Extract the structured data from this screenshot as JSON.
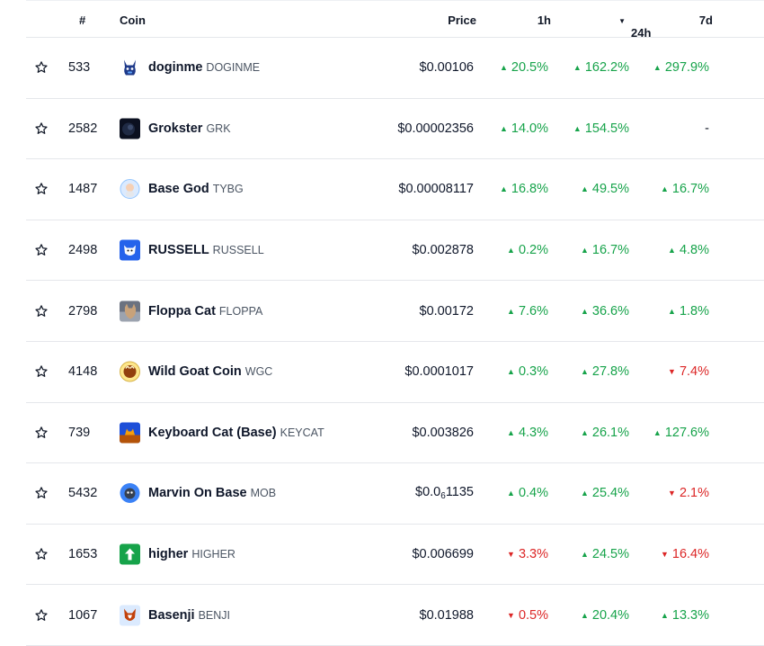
{
  "header": {
    "rank": "#",
    "coin": "Coin",
    "price": "Price",
    "h1": "1h",
    "h24": "24h",
    "d7": "7d",
    "sort_indicator": "▼"
  },
  "colors": {
    "up": "#16a34a",
    "down": "#dc2626"
  },
  "rows": [
    {
      "rank": "533",
      "name": "doginme",
      "symbol": "DOGINME",
      "price": "$0.00106",
      "h1": "20.5%",
      "h1_dir": "up",
      "h24": "162.2%",
      "h24_dir": "up",
      "d7": "297.9%",
      "d7_dir": "up",
      "icon": "doginme-logo-icon"
    },
    {
      "rank": "2582",
      "name": "Grokster",
      "symbol": "GRK",
      "price": "$0.00002356",
      "h1": "14.0%",
      "h1_dir": "up",
      "h24": "154.5%",
      "h24_dir": "up",
      "d7": "-",
      "d7_dir": "none",
      "icon": "grokster-logo-icon"
    },
    {
      "rank": "1487",
      "name": "Base God",
      "symbol": "TYBG",
      "price": "$0.00008117",
      "h1": "16.8%",
      "h1_dir": "up",
      "h24": "49.5%",
      "h24_dir": "up",
      "d7": "16.7%",
      "d7_dir": "up",
      "icon": "base-god-logo-icon"
    },
    {
      "rank": "2498",
      "name": "RUSSELL",
      "symbol": "RUSSELL",
      "price": "$0.002878",
      "h1": "0.2%",
      "h1_dir": "up",
      "h24": "16.7%",
      "h24_dir": "up",
      "d7": "4.8%",
      "d7_dir": "up",
      "icon": "russell-logo-icon"
    },
    {
      "rank": "2798",
      "name": "Floppa Cat",
      "symbol": "FLOPPA",
      "price": "$0.00172",
      "h1": "7.6%",
      "h1_dir": "up",
      "h24": "36.6%",
      "h24_dir": "up",
      "d7": "1.8%",
      "d7_dir": "up",
      "icon": "floppa-logo-icon"
    },
    {
      "rank": "4148",
      "name": "Wild Goat Coin",
      "symbol": "WGC",
      "price": "$0.0001017",
      "h1": "0.3%",
      "h1_dir": "up",
      "h24": "27.8%",
      "h24_dir": "up",
      "d7": "7.4%",
      "d7_dir": "down",
      "icon": "wild-goat-logo-icon"
    },
    {
      "rank": "739",
      "name": "Keyboard Cat (Base)",
      "symbol": "KEYCAT",
      "price": "$0.003826",
      "h1": "4.3%",
      "h1_dir": "up",
      "h24": "26.1%",
      "h24_dir": "up",
      "d7": "127.6%",
      "d7_dir": "up",
      "icon": "keyboard-cat-logo-icon"
    },
    {
      "rank": "5432",
      "name": "Marvin On Base",
      "symbol": "MOB",
      "price_prefix": "$0.0",
      "price_sub": "6",
      "price_suffix": "1135",
      "h1": "0.4%",
      "h1_dir": "up",
      "h24": "25.4%",
      "h24_dir": "up",
      "d7": "2.1%",
      "d7_dir": "down",
      "icon": "marvin-logo-icon"
    },
    {
      "rank": "1653",
      "name": "higher",
      "symbol": "HIGHER",
      "price": "$0.006699",
      "h1": "3.3%",
      "h1_dir": "down",
      "h24": "24.5%",
      "h24_dir": "up",
      "d7": "16.4%",
      "d7_dir": "down",
      "icon": "higher-logo-icon"
    },
    {
      "rank": "1067",
      "name": "Basenji",
      "symbol": "BENJI",
      "price": "$0.01988",
      "h1": "0.5%",
      "h1_dir": "down",
      "h24": "20.4%",
      "h24_dir": "up",
      "d7": "13.3%",
      "d7_dir": "up",
      "icon": "basenji-logo-icon"
    }
  ]
}
